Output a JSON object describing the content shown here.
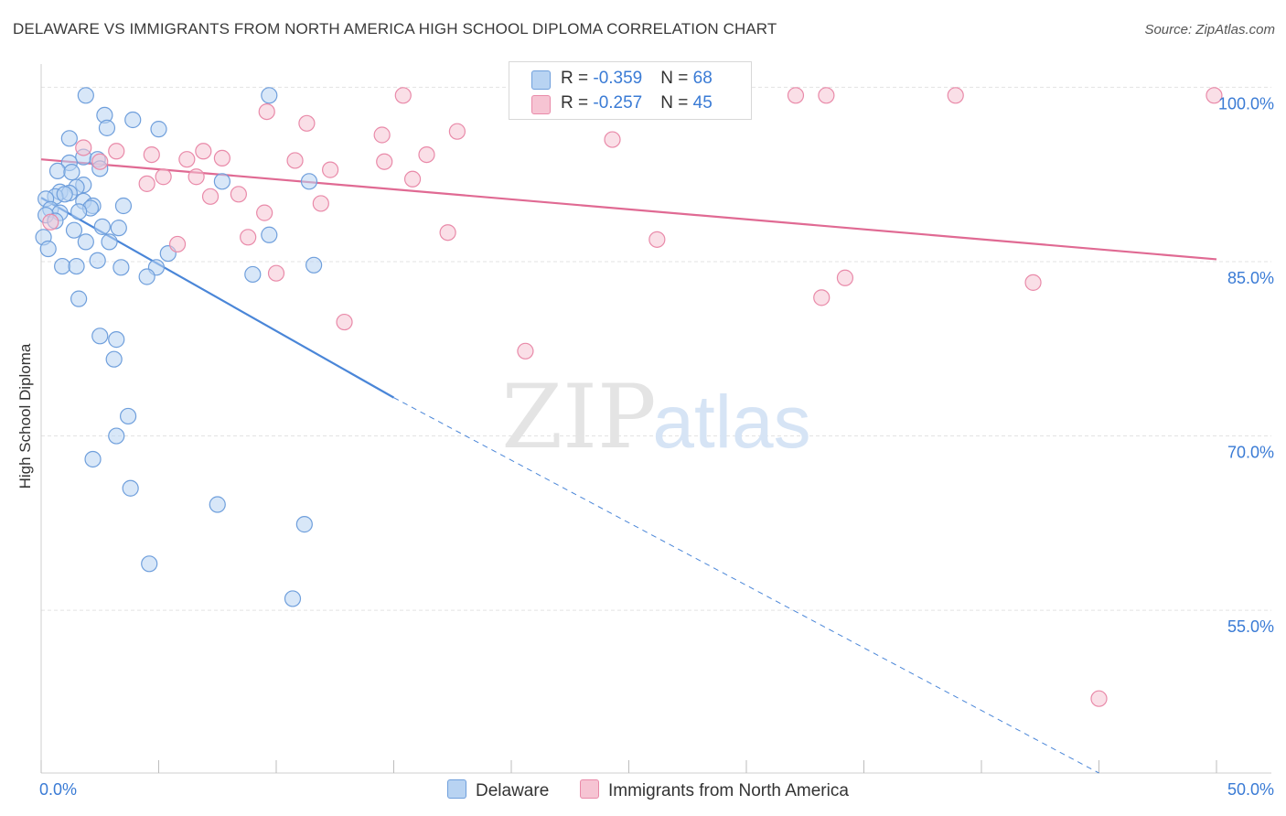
{
  "title": "DELAWARE VS IMMIGRANTS FROM NORTH AMERICA HIGH SCHOOL DIPLOMA CORRELATION CHART",
  "source": "Source: ZipAtlas.com",
  "watermark": {
    "zip": "ZIP",
    "atlas": "atlas"
  },
  "colors": {
    "blue": "#4a86d8",
    "blue_fill": "#b8d3f2",
    "pink": "#e06a93",
    "pink_fill": "#f6c4d3",
    "axis_value": "#3a7bd5",
    "grid": "#e3e3e3"
  },
  "legend": {
    "rows": [
      {
        "r_label": "R = ",
        "r_value": "-0.359",
        "n_label": "N = ",
        "n_value": "68"
      },
      {
        "r_label": "R = ",
        "r_value": "-0.257",
        "n_label": "N = ",
        "n_value": "45"
      }
    ]
  },
  "chart_data": {
    "type": "scatter",
    "title": "DELAWARE VS IMMIGRANTS FROM NORTH AMERICA HIGH SCHOOL DIPLOMA CORRELATION CHART",
    "xlabel": "",
    "ylabel": "High School Diploma",
    "xlim": [
      0,
      50
    ],
    "ylim": [
      41,
      102
    ],
    "x_tick_labels": [
      "0.0%",
      "50.0%"
    ],
    "y_ticks": [
      55,
      70,
      85,
      100
    ],
    "y_tick_labels": [
      "55.0%",
      "70.0%",
      "85.0%",
      "100.0%"
    ],
    "grid": true,
    "legend_position": "bottom",
    "series": [
      {
        "name": "Delaware",
        "color": "#4a86d8",
        "r": -0.359,
        "n": 68,
        "trend": {
          "x0": 0.0,
          "y0": 90.5,
          "x1": 15.0,
          "y1": 73.3,
          "dashed_to_x": 45.0,
          "dashed_to_y": 41.0
        },
        "points": [
          [
            1.9,
            99.3
          ],
          [
            9.7,
            99.3
          ],
          [
            2.7,
            97.6
          ],
          [
            3.9,
            97.2
          ],
          [
            2.8,
            96.5
          ],
          [
            5.0,
            96.4
          ],
          [
            1.2,
            95.6
          ],
          [
            1.8,
            94.0
          ],
          [
            2.4,
            93.8
          ],
          [
            1.2,
            93.5
          ],
          [
            2.5,
            93.0
          ],
          [
            0.7,
            92.8
          ],
          [
            1.3,
            92.7
          ],
          [
            7.7,
            91.9
          ],
          [
            11.4,
            91.9
          ],
          [
            1.8,
            91.6
          ],
          [
            1.5,
            91.4
          ],
          [
            0.8,
            91.0
          ],
          [
            1.2,
            90.9
          ],
          [
            0.6,
            90.6
          ],
          [
            1.0,
            90.8
          ],
          [
            1.8,
            90.2
          ],
          [
            0.2,
            90.4
          ],
          [
            2.2,
            89.8
          ],
          [
            3.5,
            89.8
          ],
          [
            2.1,
            89.6
          ],
          [
            0.4,
            89.5
          ],
          [
            1.6,
            89.3
          ],
          [
            0.8,
            89.2
          ],
          [
            0.2,
            89.0
          ],
          [
            0.6,
            88.5
          ],
          [
            2.6,
            88.0
          ],
          [
            3.3,
            87.9
          ],
          [
            1.4,
            87.7
          ],
          [
            9.7,
            87.3
          ],
          [
            0.1,
            87.1
          ],
          [
            1.9,
            86.7
          ],
          [
            2.9,
            86.7
          ],
          [
            0.3,
            86.1
          ],
          [
            5.4,
            85.7
          ],
          [
            2.4,
            85.1
          ],
          [
            0.9,
            84.6
          ],
          [
            1.5,
            84.6
          ],
          [
            3.4,
            84.5
          ],
          [
            4.9,
            84.5
          ],
          [
            11.6,
            84.7
          ],
          [
            4.5,
            83.7
          ],
          [
            9.0,
            83.9
          ],
          [
            1.6,
            81.8
          ],
          [
            2.5,
            78.6
          ],
          [
            3.2,
            78.3
          ],
          [
            3.1,
            76.6
          ],
          [
            3.7,
            71.7
          ],
          [
            3.2,
            70.0
          ],
          [
            2.2,
            68.0
          ],
          [
            3.8,
            65.5
          ],
          [
            7.5,
            64.1
          ],
          [
            11.2,
            62.4
          ],
          [
            4.6,
            59.0
          ],
          [
            10.7,
            56.0
          ]
        ]
      },
      {
        "name": "Immigrants from North America",
        "color": "#e06a93",
        "r": -0.257,
        "n": 45,
        "trend": {
          "x0": 0.0,
          "y0": 93.8,
          "x1": 50.0,
          "y1": 85.2
        },
        "points": [
          [
            15.4,
            99.3
          ],
          [
            32.1,
            99.3
          ],
          [
            33.4,
            99.3
          ],
          [
            38.9,
            99.3
          ],
          [
            49.9,
            99.3
          ],
          [
            9.6,
            97.9
          ],
          [
            11.3,
            96.9
          ],
          [
            17.7,
            96.2
          ],
          [
            14.5,
            95.9
          ],
          [
            24.3,
            95.5
          ],
          [
            1.8,
            94.8
          ],
          [
            3.2,
            94.5
          ],
          [
            6.9,
            94.5
          ],
          [
            4.7,
            94.2
          ],
          [
            16.4,
            94.2
          ],
          [
            7.7,
            93.9
          ],
          [
            6.2,
            93.8
          ],
          [
            10.8,
            93.7
          ],
          [
            2.5,
            93.6
          ],
          [
            14.6,
            93.6
          ],
          [
            12.3,
            92.9
          ],
          [
            5.2,
            92.3
          ],
          [
            6.6,
            92.3
          ],
          [
            15.8,
            92.1
          ],
          [
            4.5,
            91.7
          ],
          [
            8.4,
            90.8
          ],
          [
            7.2,
            90.6
          ],
          [
            11.9,
            90.0
          ],
          [
            9.5,
            89.2
          ],
          [
            0.4,
            88.4
          ],
          [
            17.3,
            87.5
          ],
          [
            8.8,
            87.1
          ],
          [
            26.2,
            86.9
          ],
          [
            5.8,
            86.5
          ],
          [
            10.0,
            84.0
          ],
          [
            34.2,
            83.6
          ],
          [
            42.2,
            83.2
          ],
          [
            33.2,
            81.9
          ],
          [
            12.9,
            79.8
          ],
          [
            20.6,
            77.3
          ],
          [
            45.0,
            47.4
          ]
        ]
      }
    ]
  }
}
